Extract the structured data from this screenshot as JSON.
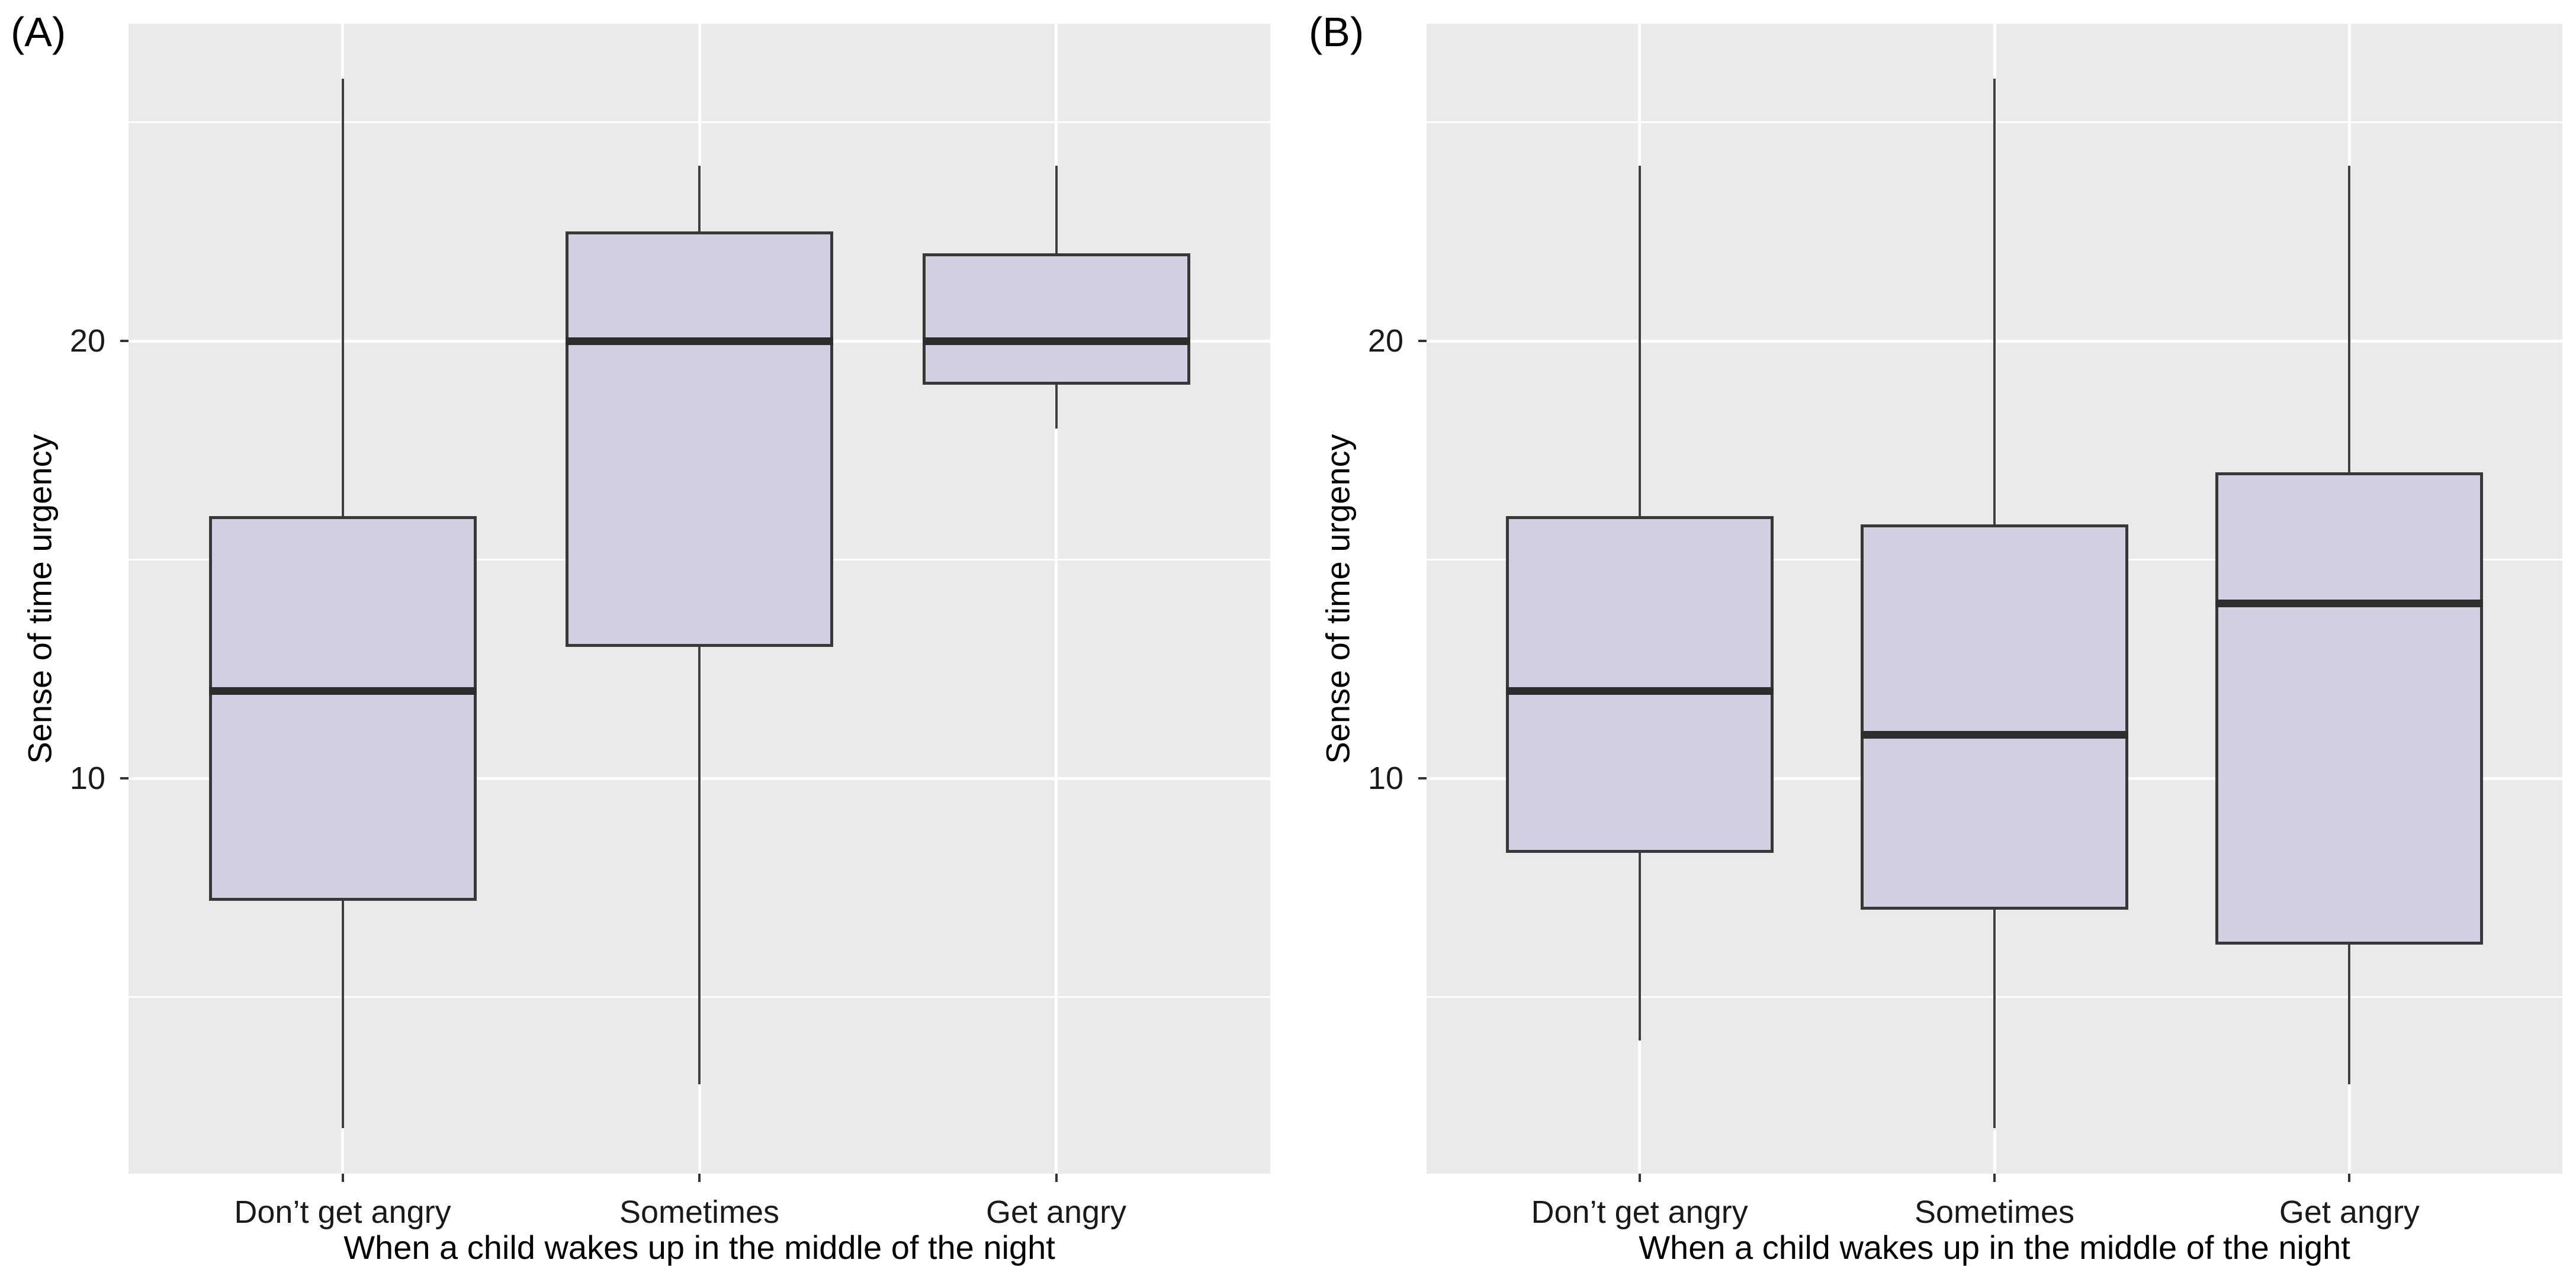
{
  "figure": {
    "background": "#FFFFFF"
  },
  "colors": {
    "panel_bg": "#EAEAEA",
    "grid_major": "#FFFFFF",
    "grid_minor": "#FFFFFF",
    "box_fill": "#D4D0E4",
    "box_border": "#383838",
    "median_line": "#2D2D2D",
    "whisker": "#3F3F3F",
    "tick_text": "#1a1a1a",
    "title_text": "#000000"
  },
  "chart_data": [
    {
      "type": "boxplot",
      "panel_label": "(A)",
      "xlabel": "When a child wakes up in the middle of the night",
      "ylabel": "Sense of time urgency",
      "categories": [
        "Don’t get angry",
        "Sometimes",
        "Get angry"
      ],
      "y_ticks": [
        10,
        20
      ],
      "y_tick_labels": [
        "10",
        "20"
      ],
      "y_minor_ticks": [
        5,
        15,
        25
      ],
      "ylim": [
        0.95,
        27.3
      ],
      "grid": "on",
      "legend": "none",
      "series": [
        {
          "category": "Don’t get angry",
          "min": 2,
          "q1": 7.2,
          "median": 12,
          "q3": 16,
          "max": 26
        },
        {
          "category": "Sometimes",
          "min": 3,
          "q1": 13,
          "median": 20,
          "q3": 22.5,
          "max": 24
        },
        {
          "category": "Get angry",
          "min": 18,
          "q1": 19,
          "median": 20,
          "q3": 22,
          "max": 24
        }
      ]
    },
    {
      "type": "boxplot",
      "panel_label": "(B)",
      "xlabel": "When a child wakes up in the middle of the night",
      "ylabel": "Sense of time urgency",
      "categories": [
        "Don’t get angry",
        "Sometimes",
        "Get angry"
      ],
      "y_ticks": [
        10,
        20
      ],
      "y_tick_labels": [
        "10",
        "20"
      ],
      "y_minor_ticks": [
        5,
        15,
        25
      ],
      "ylim": [
        0.95,
        27.3
      ],
      "grid": "on",
      "legend": "none",
      "series": [
        {
          "category": "Don’t get angry",
          "min": 4,
          "q1": 8.3,
          "median": 12,
          "q3": 16,
          "max": 24
        },
        {
          "category": "Sometimes",
          "min": 2,
          "q1": 7,
          "median": 11,
          "q3": 15.8,
          "max": 26
        },
        {
          "category": "Get angry",
          "min": 3,
          "q1": 6.2,
          "median": 14,
          "q3": 17,
          "max": 24
        }
      ]
    }
  ]
}
